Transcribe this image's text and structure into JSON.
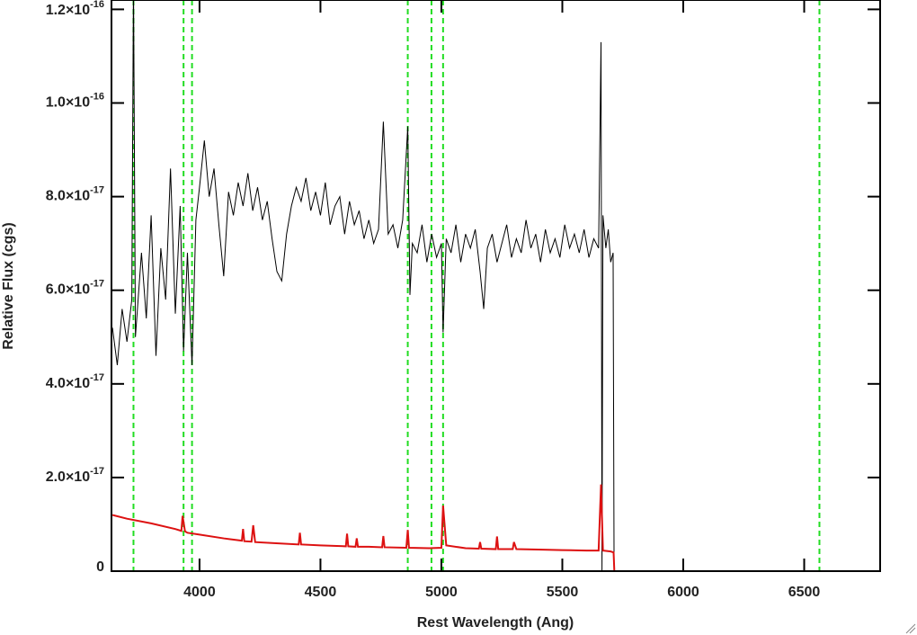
{
  "chart_data": {
    "type": "line",
    "xlabel": "Rest Wavelength (Ang)",
    "ylabel": "Relative Flux (cgs)",
    "xlim": [
      3636,
      6814
    ],
    "ylim": [
      0,
      1.22e-16
    ],
    "xticks": [
      4000,
      4500,
      5000,
      5500,
      6000,
      6500
    ],
    "yticks": [
      0,
      {
        "value": 2e-17,
        "label": "2.0×10",
        "exponent": "-17"
      },
      {
        "value": 4e-17,
        "label": "4.0×10",
        "exponent": "-17"
      },
      {
        "value": 6e-17,
        "label": "6.0×10",
        "exponent": "-17"
      },
      {
        "value": 8e-17,
        "label": "8.0×10",
        "exponent": "-17"
      },
      {
        "value": 1e-16,
        "label": "1.0×10",
        "exponent": "-16"
      },
      {
        "value": 1.2e-16,
        "label": "1.2×10",
        "exponent": "-16"
      }
    ],
    "grid": false,
    "lines": {
      "color": "#22dd22",
      "values": [
        3727,
        3934,
        3969,
        4861,
        4959,
        5007,
        6563
      ]
    },
    "series": [
      {
        "color": "#000000",
        "x": [
          3640,
          3660,
          3680,
          3700,
          3720,
          3727,
          3735,
          3760,
          3780,
          3800,
          3820,
          3840,
          3860,
          3880,
          3900,
          3920,
          3934,
          3950,
          3969,
          3985,
          4000,
          4020,
          4040,
          4060,
          4080,
          4100,
          4120,
          4140,
          4160,
          4180,
          4200,
          4220,
          4240,
          4260,
          4280,
          4300,
          4320,
          4340,
          4360,
          4380,
          4400,
          4420,
          4440,
          4460,
          4480,
          4500,
          4520,
          4540,
          4560,
          4580,
          4600,
          4620,
          4640,
          4660,
          4680,
          4700,
          4720,
          4740,
          4760,
          4780,
          4800,
          4820,
          4840,
          4861,
          4870,
          4880,
          4900,
          4920,
          4940,
          4960,
          4980,
          5000,
          5007,
          5020,
          5040,
          5060,
          5080,
          5100,
          5120,
          5140,
          5160,
          5175,
          5190,
          5210,
          5230,
          5250,
          5270,
          5290,
          5310,
          5330,
          5350,
          5370,
          5390,
          5410,
          5430,
          5450,
          5470,
          5490,
          5510,
          5530,
          5550,
          5570,
          5590,
          5610,
          5630,
          5650,
          5660,
          5664,
          5668,
          5680,
          5690,
          5700,
          5710,
          5714
        ],
        "values": [
          5.2e-17,
          4.4e-17,
          5.6e-17,
          4.9e-17,
          5.8e-17,
          1.26e-16,
          5e-17,
          6.8e-17,
          5.4e-17,
          7.6e-17,
          4.6e-17,
          6.9e-17,
          5.8e-17,
          8.6e-17,
          5.5e-17,
          7.8e-17,
          4.7e-17,
          6.8e-17,
          4.4e-17,
          7.5e-17,
          8.2e-17,
          9.2e-17,
          8e-17,
          8.6e-17,
          7.4e-17,
          6.3e-17,
          8.1e-17,
          7.6e-17,
          8.3e-17,
          7.8e-17,
          8.5e-17,
          7.7e-17,
          8.2e-17,
          7.5e-17,
          7.9e-17,
          7.1e-17,
          6.4e-17,
          6.2e-17,
          7.2e-17,
          7.8e-17,
          8.2e-17,
          7.9e-17,
          8.4e-17,
          7.7e-17,
          8.1e-17,
          7.6e-17,
          8.3e-17,
          7.4e-17,
          7.8e-17,
          8e-17,
          7.2e-17,
          7.9e-17,
          7.4e-17,
          7.7e-17,
          7.1e-17,
          7.5e-17,
          7e-17,
          7.3e-17,
          9.6e-17,
          7.2e-17,
          7.4e-17,
          6.9e-17,
          7.5e-17,
          9.5e-17,
          5.9e-17,
          7e-17,
          6.8e-17,
          7.4e-17,
          6.6e-17,
          7.2e-17,
          6.7e-17,
          7e-17,
          5.1e-17,
          7.1e-17,
          6.8e-17,
          7.4e-17,
          6.6e-17,
          7.2e-17,
          6.9e-17,
          7.3e-17,
          6.4e-17,
          5.6e-17,
          6.9e-17,
          7.2e-17,
          6.6e-17,
          7e-17,
          7.4e-17,
          6.7e-17,
          7.1e-17,
          6.8e-17,
          7.5e-17,
          6.9e-17,
          7.2e-17,
          6.6e-17,
          7.3e-17,
          6.8e-17,
          7.1e-17,
          6.7e-17,
          7.4e-17,
          6.9e-17,
          7.2e-17,
          6.8e-17,
          7.3e-17,
          6.7e-17,
          7.1e-17,
          6.9e-17,
          1.13e-16,
          0,
          7.6e-17,
          6.9e-17,
          7.3e-17,
          6.6e-17,
          6.8e-17,
          0
        ]
      },
      {
        "color": "#dd1111",
        "x": [
          3640,
          3700,
          3800,
          3900,
          3925,
          3930,
          3940,
          3950,
          4000,
          4100,
          4175,
          4180,
          4185,
          4215,
          4222,
          4230,
          4300,
          4410,
          4415,
          4420,
          4500,
          4605,
          4610,
          4615,
          4645,
          4650,
          4655,
          4700,
          4755,
          4760,
          4765,
          4855,
          4861,
          4866,
          4950,
          5000,
          5007,
          5020,
          5100,
          5155,
          5160,
          5165,
          5225,
          5230,
          5235,
          5295,
          5300,
          5310,
          5400,
          5500,
          5600,
          5650,
          5660,
          5668,
          5700,
          5712,
          5715,
          6814
        ],
        "values": [
          1.2e-17,
          1.12e-17,
          1.02e-17,
          9e-18,
          8.6e-18,
          1.18e-17,
          8.5e-18,
          8.2e-18,
          7.8e-18,
          7e-18,
          6.5e-18,
          9e-18,
          6.4e-18,
          6.3e-18,
          9.8e-18,
          6.2e-18,
          6e-18,
          5.7e-18,
          8.2e-18,
          5.7e-18,
          5.5e-18,
          5.3e-18,
          8e-18,
          5.3e-18,
          5.2e-18,
          7e-18,
          5.2e-18,
          5.2e-18,
          5.1e-18,
          7.5e-18,
          5.1e-18,
          5e-18,
          8.8e-18,
          5e-18,
          4.9e-18,
          5e-18,
          1.4e-17,
          5.5e-18,
          4.9e-18,
          4.8e-18,
          6.2e-18,
          4.8e-18,
          4.7e-18,
          7.4e-18,
          4.7e-18,
          4.7e-18,
          6.2e-18,
          4.7e-18,
          4.6e-18,
          4.5e-18,
          4.4e-18,
          4.4e-18,
          1.85e-17,
          4.4e-18,
          4.2e-18,
          4e-18,
          0,
          0
        ]
      }
    ]
  }
}
